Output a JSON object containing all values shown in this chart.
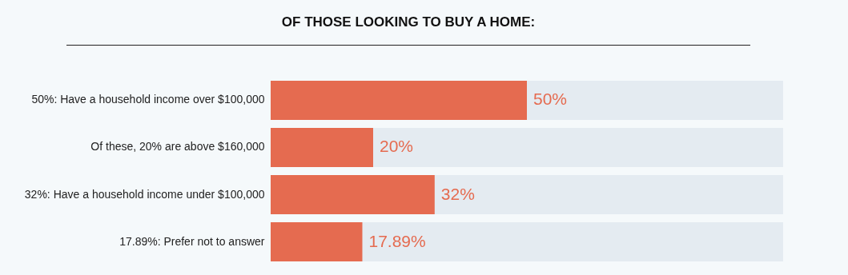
{
  "chart_data": {
    "type": "bar",
    "orientation": "horizontal",
    "title": "OF THOSE LOOKING TO BUY A HOME:",
    "categories": [
      "50%: Have a household income over $100,000",
      "Of these, 20% are above $160,000",
      "32%: Have a household income under $100,000",
      "17.89%: Prefer not to answer"
    ],
    "values": [
      50,
      20,
      32,
      17.89
    ],
    "value_labels": [
      "50%",
      "20%",
      "32%",
      "17.89%"
    ],
    "color": "#e56b50",
    "xlim": [
      0,
      100
    ],
    "tick_labels": "y"
  }
}
